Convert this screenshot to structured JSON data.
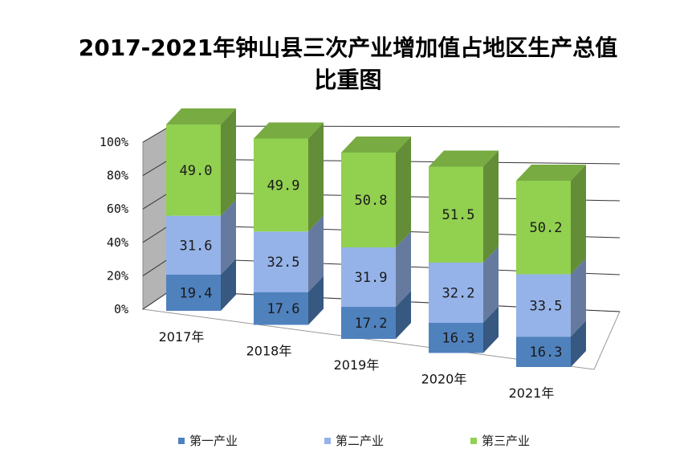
{
  "chart_data": {
    "type": "bar",
    "stacked": "percent",
    "title_line1": "2017-2021年钟山县三次产业增加值占地区生产总值",
    "title_line2": "比重图",
    "categories": [
      "2017年",
      "2018年",
      "2019年",
      "2020年",
      "2021年"
    ],
    "series": [
      {
        "name": "第一产业",
        "values": [
          19.4,
          17.6,
          17.2,
          16.3,
          16.3
        ],
        "labels": [
          "19.4",
          "17.6",
          "17.2",
          "16.3",
          "16.3"
        ]
      },
      {
        "name": "第二产业",
        "values": [
          31.6,
          32.5,
          31.9,
          32.2,
          33.5
        ],
        "labels": [
          "31.6",
          "32.5",
          "31.9",
          "32.2",
          "33.5"
        ]
      },
      {
        "name": "第三产业",
        "values": [
          49.0,
          49.9,
          50.8,
          51.5,
          50.2
        ],
        "labels": [
          "49.0",
          "49.9",
          "50.8",
          "51.5",
          "50.2"
        ]
      }
    ],
    "y_ticks": [
      "0%",
      "20%",
      "40%",
      "60%",
      "80%",
      "100%"
    ],
    "ylim": [
      0,
      100
    ],
    "grid": true,
    "legend_position": "bottom",
    "colors": {
      "第一产业": "#4f81bd",
      "第二产业": "#95b3e8",
      "第三产业": "#92d050"
    }
  }
}
